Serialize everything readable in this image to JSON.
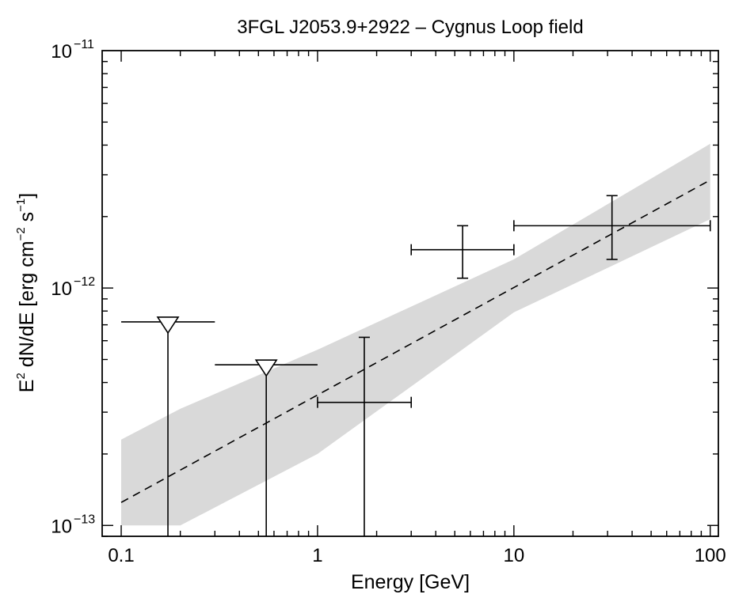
{
  "chart_data": {
    "type": "scatter",
    "title": "3FGL J2053.9+2922 – Cygnus Loop field",
    "xlabel": "Energy [GeV]",
    "ylabel": {
      "base": "E",
      "sq": "2",
      "text": " dN/dE [erg cm",
      "exp": "−2",
      "text2": " s",
      "exp2": "−1",
      "close": "]"
    },
    "x_scale": "log",
    "y_scale": "log",
    "xlim": [
      0.08,
      110
    ],
    "ylim": [
      9e-14,
      1e-11
    ],
    "x_ticks": [
      {
        "value": 0.1,
        "label": "0.1"
      },
      {
        "value": 1,
        "label": "1"
      },
      {
        "value": 10,
        "label": "10"
      },
      {
        "value": 100,
        "label": "100"
      }
    ],
    "y_ticks": [
      {
        "value": 1e-13,
        "base": "10",
        "exp": "−13"
      },
      {
        "value": 1e-12,
        "base": "10",
        "exp": "−12"
      },
      {
        "value": 1e-11,
        "base": "10",
        "exp": "−11"
      }
    ],
    "model": {
      "style": "dashed",
      "x": [
        0.1,
        100
      ],
      "y": [
        1.25e-13,
        2.85e-12
      ]
    },
    "band": {
      "color": "#d9d9d9",
      "x": [
        0.1,
        0.2,
        1.0,
        10.0,
        100
      ],
      "upper": [
        2.3e-13,
        3.1e-13,
        5.5e-13,
        1.32e-12,
        4.05e-12
      ],
      "lower": [
        1e-13,
        1e-13,
        2e-13,
        7.9e-13,
        1.95e-12
      ]
    },
    "upper_limits": [
      {
        "x": 0.173,
        "x_lo": 0.1,
        "x_hi": 0.3,
        "y": 7.2e-13
      },
      {
        "x": 0.548,
        "x_lo": 0.3,
        "x_hi": 1.0,
        "y": 4.75e-13
      }
    ],
    "points": [
      {
        "x": 1.73,
        "x_lo": 1.0,
        "x_hi": 3.0,
        "y": 3.3e-13,
        "y_lo": 9e-14,
        "y_hi": 6.2e-13
      },
      {
        "x": 5.48,
        "x_lo": 3.0,
        "x_hi": 10.0,
        "y": 1.45e-12,
        "y_lo": 1.1e-12,
        "y_hi": 1.83e-12
      },
      {
        "x": 31.6,
        "x_lo": 10.0,
        "x_hi": 100.0,
        "y": 1.83e-12,
        "y_lo": 1.32e-12,
        "y_hi": 2.45e-12
      }
    ],
    "grid": false,
    "legend": "none"
  }
}
